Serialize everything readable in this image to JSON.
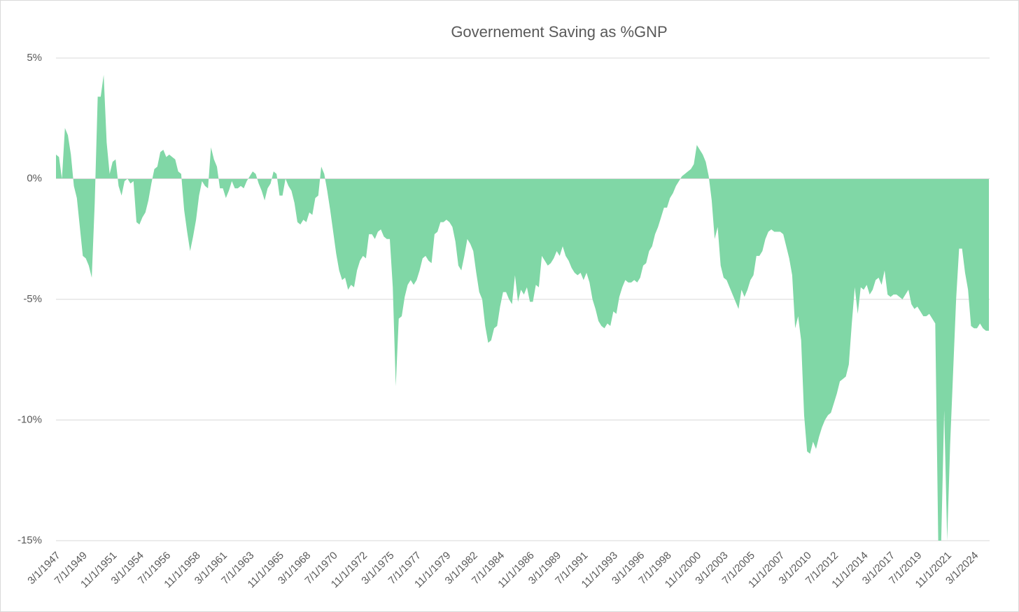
{
  "chart_data": {
    "type": "area",
    "title": "Governement Saving as %GNP",
    "color": "#80d7a6",
    "grid": true,
    "ylim": [
      -15,
      5
    ],
    "yticks": [
      {
        "value": -15,
        "label": "-15%"
      },
      {
        "value": -10,
        "label": "-10%"
      },
      {
        "value": -5,
        "label": "-5%"
      },
      {
        "value": 0,
        "label": "0%"
      },
      {
        "value": 5,
        "label": "5%"
      }
    ],
    "categories": [
      "3/1/1947",
      null,
      null,
      null,
      null,
      null,
      null,
      null,
      null,
      "7/1/1949",
      null,
      null,
      null,
      null,
      null,
      null,
      null,
      null,
      null,
      "11/1/1951",
      null,
      null,
      null,
      null,
      null,
      null,
      null,
      null,
      "3/1/1954",
      null,
      null,
      null,
      null,
      null,
      null,
      null,
      null,
      "7/1/1956",
      null,
      null,
      null,
      null,
      null,
      null,
      null,
      null,
      null,
      "11/1/1958",
      null,
      null,
      null,
      null,
      null,
      null,
      null,
      null,
      "3/1/1961",
      null,
      null,
      null,
      null,
      null,
      null,
      null,
      null,
      "7/1/1963",
      null,
      null,
      null,
      null,
      null,
      null,
      null,
      null,
      null,
      "11/1/1965",
      null,
      null,
      null,
      null,
      null,
      null,
      null,
      null,
      "3/1/1968",
      null,
      null,
      null,
      null,
      null,
      null,
      null,
      null,
      "7/1/1970",
      null,
      null,
      null,
      null,
      null,
      null,
      null,
      null,
      null,
      "11/1/1972",
      null,
      null,
      null,
      null,
      null,
      null,
      null,
      null,
      "3/1/1975",
      null,
      null,
      null,
      null,
      null,
      null,
      null,
      null,
      "7/1/1977",
      null,
      null,
      null,
      null,
      null,
      null,
      null,
      null,
      null,
      "11/1/1979",
      null,
      null,
      null,
      null,
      null,
      null,
      null,
      null,
      "3/1/1982",
      null,
      null,
      null,
      null,
      null,
      null,
      null,
      null,
      "7/1/1984",
      null,
      null,
      null,
      null,
      null,
      null,
      null,
      null,
      null,
      "11/1/1986",
      null,
      null,
      null,
      null,
      null,
      null,
      null,
      null,
      "3/1/1989",
      null,
      null,
      null,
      null,
      null,
      null,
      null,
      null,
      "7/1/1991",
      null,
      null,
      null,
      null,
      null,
      null,
      null,
      null,
      null,
      "11/1/1993",
      null,
      null,
      null,
      null,
      null,
      null,
      null,
      null,
      "3/1/1996",
      null,
      null,
      null,
      null,
      null,
      null,
      null,
      null,
      "7/1/1998",
      null,
      null,
      null,
      null,
      null,
      null,
      null,
      null,
      null,
      "11/1/2000",
      null,
      null,
      null,
      null,
      null,
      null,
      null,
      null,
      "3/1/2003",
      null,
      null,
      null,
      null,
      null,
      null,
      null,
      null,
      "7/1/2005",
      null,
      null,
      null,
      null,
      null,
      null,
      null,
      null,
      null,
      "11/1/2007",
      null,
      null,
      null,
      null,
      null,
      null,
      null,
      null,
      "3/1/2010",
      null,
      null,
      null,
      null,
      null,
      null,
      null,
      null,
      "7/1/2012",
      null,
      null,
      null,
      null,
      null,
      null,
      null,
      null,
      null,
      "11/1/2014",
      null,
      null,
      null,
      null,
      null,
      null,
      null,
      null,
      "3/1/2017",
      null,
      null,
      null,
      null,
      null,
      null,
      null,
      null,
      "7/1/2019",
      null,
      null,
      null,
      null,
      null,
      null,
      null,
      null,
      null,
      "11/1/2021",
      null,
      null,
      null,
      null,
      null,
      null,
      null,
      null,
      "3/1/2024",
      null,
      null,
      null,
      null,
      null
    ],
    "values": [
      1.0,
      0.9,
      0,
      2.1,
      1.8,
      1.0,
      -0.3,
      -0.8,
      -2,
      -3.2,
      -3.3,
      -3.6,
      -4.1,
      -1,
      3.4,
      3.4,
      4.3,
      1.5,
      0.2,
      0.7,
      0.8,
      -0.3,
      -0.7,
      -0.1,
      0,
      -0.2,
      -0.1,
      -1.8,
      -1.9,
      -1.6,
      -1.4,
      -0.9,
      -0.2,
      0.4,
      0.5,
      1.1,
      1.2,
      0.9,
      1.0,
      0.9,
      0.8,
      0.3,
      0.2,
      -1.3,
      -2.2,
      -3.0,
      -2.4,
      -1.7,
      -0.7,
      -0.1,
      -0.3,
      -0.4,
      1.3,
      0.8,
      0.5,
      -0.4,
      -0.4,
      -0.8,
      -0.5,
      -0.1,
      -0.4,
      -0.4,
      -0.3,
      -0.4,
      -0.1,
      0.1,
      0.3,
      0.2,
      -0.2,
      -0.5,
      -0.9,
      -0.4,
      -0.2,
      0.3,
      0.2,
      -0.7,
      -0.7,
      0,
      -0.3,
      -0.5,
      -1,
      -1.8,
      -1.9,
      -1.7,
      -1.8,
      -1.4,
      -1.5,
      -0.8,
      -0.7,
      0.5,
      0.2,
      -0.5,
      -1.3,
      -2.2,
      -3.1,
      -3.8,
      -4.2,
      -4.1,
      -4.6,
      -4.4,
      -4.5,
      -3.8,
      -3.4,
      -3.2,
      -3.3,
      -2.3,
      -2.3,
      -2.5,
      -2.2,
      -2.1,
      -2.4,
      -2.5,
      -2.5,
      -4.5,
      -8.6,
      -5.8,
      -5.7,
      -4.9,
      -4.4,
      -4.2,
      -4.4,
      -4.2,
      -3.8,
      -3.3,
      -3.2,
      -3.4,
      -3.5,
      -2.3,
      -2.2,
      -1.8,
      -1.8,
      -1.7,
      -1.8,
      -2.0,
      -2.6,
      -3.6,
      -3.8,
      -3.2,
      -2.5,
      -2.7,
      -3.0,
      -3.9,
      -4.7,
      -5.0,
      -6.1,
      -6.8,
      -6.7,
      -6.2,
      -6.1,
      -5.3,
      -4.7,
      -4.7,
      -5.0,
      -5.2,
      -4.0,
      -5.1,
      -4.6,
      -4.8,
      -4.5,
      -5.1,
      -5.1,
      -4.4,
      -4.5,
      -3.2,
      -3.4,
      -3.6,
      -3.5,
      -3.3,
      -3.0,
      -3.2,
      -2.8,
      -3.2,
      -3.4,
      -3.7,
      -3.9,
      -4.0,
      -3.9,
      -4.2,
      -3.9,
      -4.3,
      -5.0,
      -5.4,
      -5.9,
      -6.1,
      -6.2,
      -6.0,
      -6.1,
      -5.5,
      -5.6,
      -4.9,
      -4.5,
      -4.2,
      -4.3,
      -4.3,
      -4.2,
      -4.3,
      -4.1,
      -3.6,
      -3.5,
      -3.0,
      -2.8,
      -2.3,
      -2.0,
      -1.6,
      -1.2,
      -1.2,
      -0.8,
      -0.6,
      -0.3,
      -0.1,
      0.1,
      0.2,
      0.3,
      0.4,
      0.6,
      1.4,
      1.2,
      1.0,
      0.7,
      0.1,
      -0.9,
      -2.5,
      -2.0,
      -3.6,
      -4.1,
      -4.2,
      -4.5,
      -4.8,
      -5.1,
      -5.4,
      -4.6,
      -4.9,
      -4.6,
      -4.2,
      -4.0,
      -3.2,
      -3.2,
      -3.0,
      -2.5,
      -2.2,
      -2.1,
      -2.2,
      -2.2,
      -2.2,
      -2.3,
      -2.8,
      -3.3,
      -4.0,
      -6.2,
      -5.7,
      -6.7,
      -9.8,
      -11.3,
      -11.4,
      -10.9,
      -11.2,
      -10.7,
      -10.3,
      -10.0,
      -9.8,
      -9.7,
      -9.3,
      -8.9,
      -8.4,
      -8.3,
      -8.2,
      -7.7,
      -6.0,
      -4.5,
      -5.6,
      -4.5,
      -4.6,
      -4.4,
      -4.8,
      -4.6,
      -4.2,
      -4.1,
      -4.4,
      -3.8,
      -4.8,
      -4.9,
      -4.8,
      -4.8,
      -4.9,
      -5.0,
      -4.8,
      -4.6,
      -5.2,
      -5.4,
      -5.3,
      -5.5,
      -5.7,
      -5.7,
      -5.6,
      -5.8,
      -6.0,
      -15,
      -15,
      -9.6,
      -15,
      -11,
      -8,
      -5,
      -2.9,
      -2.9,
      -3.9,
      -4.6,
      -6.1,
      -6.2,
      -6.2,
      -6.0,
      -6.2,
      -6.3,
      -6.3
    ]
  }
}
